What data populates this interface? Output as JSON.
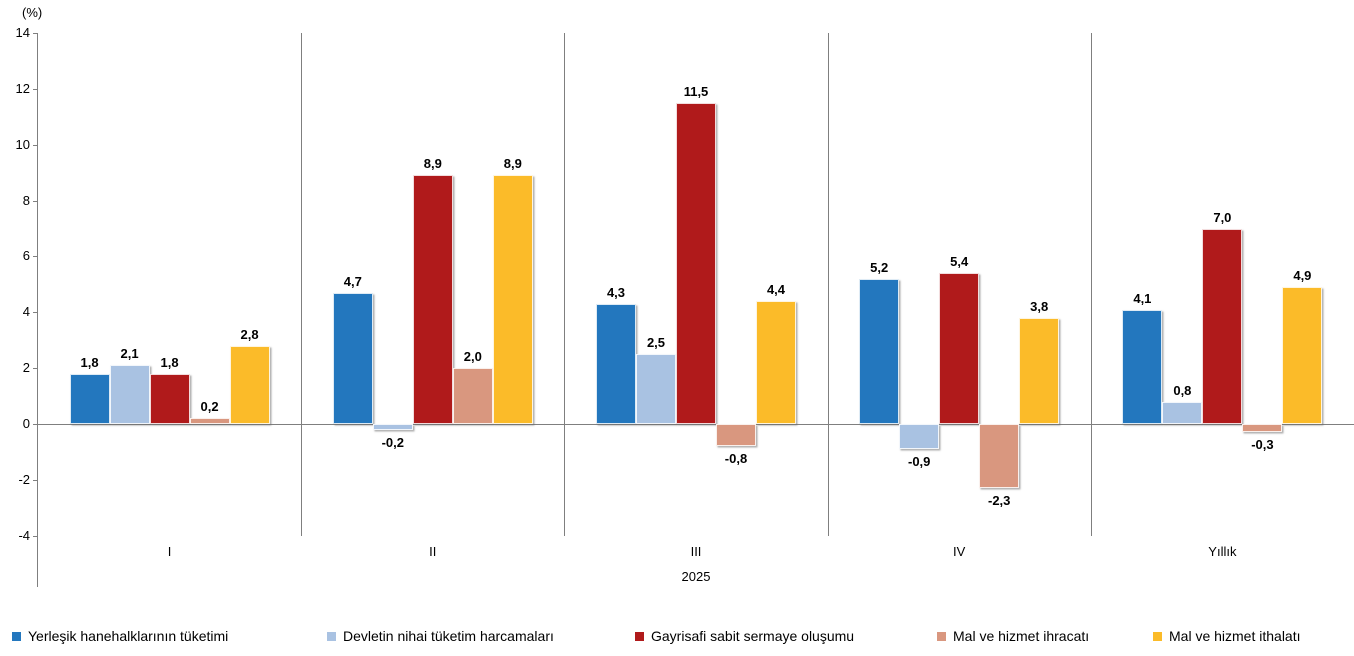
{
  "chart_data": {
    "type": "bar",
    "title": "",
    "ylabel": "(%)",
    "xlabel": "2025",
    "ylim": [
      -4,
      14
    ],
    "ytick_step": 2,
    "grid": false,
    "legend_position": "bottom",
    "categories": [
      "I",
      "II",
      "III",
      "IV",
      "Yıllık"
    ],
    "series": [
      {
        "name": "Yerleşik hanehalklarının tüketimi",
        "color": "#2377BE",
        "values": [
          1.8,
          4.7,
          4.3,
          5.2,
          4.1
        ]
      },
      {
        "name": "Devletin nihai tüketim harcamaları",
        "color": "#A9C2E2",
        "values": [
          2.1,
          -0.2,
          2.5,
          -0.9,
          0.8
        ]
      },
      {
        "name": "Gayrisafi sabit sermaye oluşumu",
        "color": "#B01A1B",
        "values": [
          1.8,
          8.9,
          11.5,
          5.4,
          7.0
        ]
      },
      {
        "name": "Mal ve hizmet ihracatı",
        "color": "#D9977F",
        "values": [
          0.2,
          2.0,
          -0.8,
          -2.3,
          -0.3
        ]
      },
      {
        "name": "Mal ve hizmet ithalatı",
        "color": "#FBBB29",
        "values": [
          2.8,
          8.9,
          4.4,
          3.8,
          4.9
        ]
      }
    ],
    "value_label_decimal_separator": ",",
    "axis_color": "#7F7F7F",
    "text_color": "#000000"
  }
}
